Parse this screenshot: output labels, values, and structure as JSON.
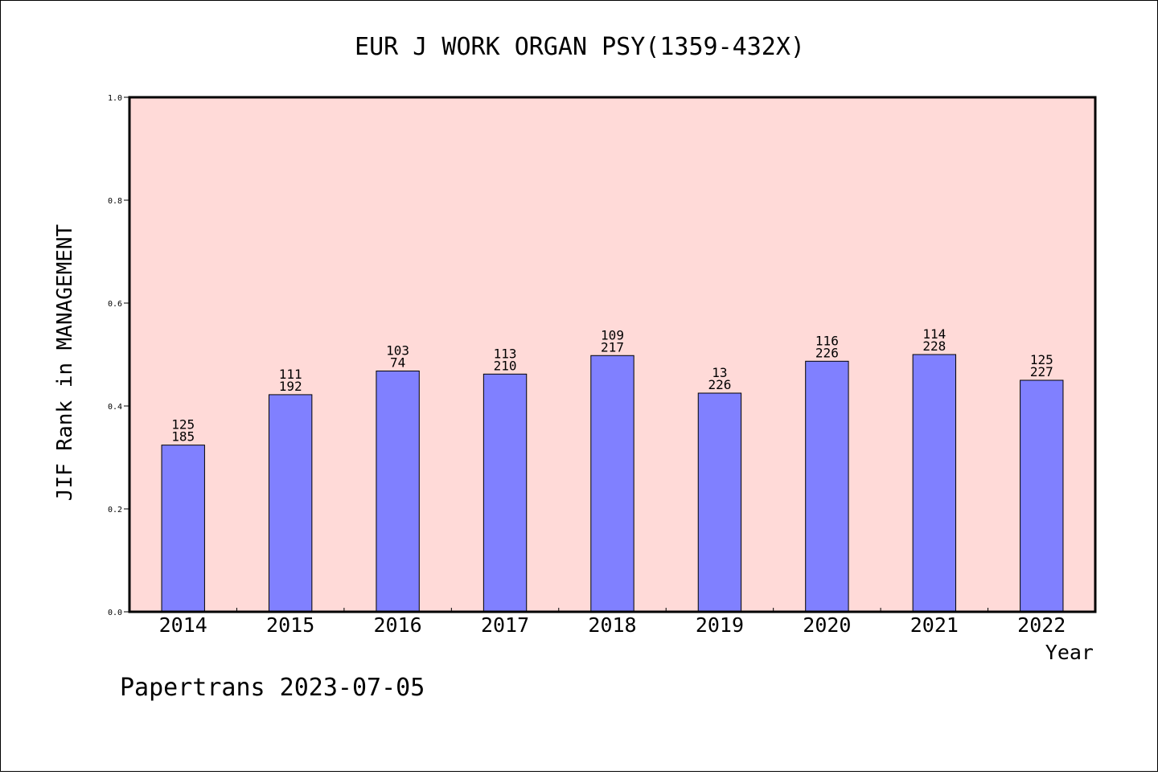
{
  "chart_data": {
    "type": "bar",
    "title": "EUR J WORK ORGAN PSY(1359-432X)",
    "xlabel": "Year",
    "ylabel": "JIF Rank in MANAGEMENT",
    "ylim": [
      0,
      1.0
    ],
    "yticks": [
      "0.0",
      "0.2",
      "0.4",
      "0.6",
      "0.8",
      "1.0"
    ],
    "categories": [
      "2014",
      "2015",
      "2016",
      "2017",
      "2018",
      "2019",
      "2020",
      "2021",
      "2022"
    ],
    "values": [
      0.324,
      0.422,
      0.468,
      0.462,
      0.498,
      0.425,
      0.487,
      0.5,
      0.45
    ],
    "label_top": [
      "125",
      "111",
      "103",
      "113",
      "109",
      "13",
      "116",
      "114",
      "125"
    ],
    "label_bottom": [
      "185",
      "192",
      "74",
      "210",
      "217",
      "226",
      "226",
      "228",
      "227"
    ],
    "grid": false,
    "legend": "none",
    "colors": {
      "plot_background": "#ffdad8",
      "bar_fill": "#8080ff",
      "bar_stroke": "#000000"
    }
  },
  "footer": "Papertrans 2023-07-05"
}
